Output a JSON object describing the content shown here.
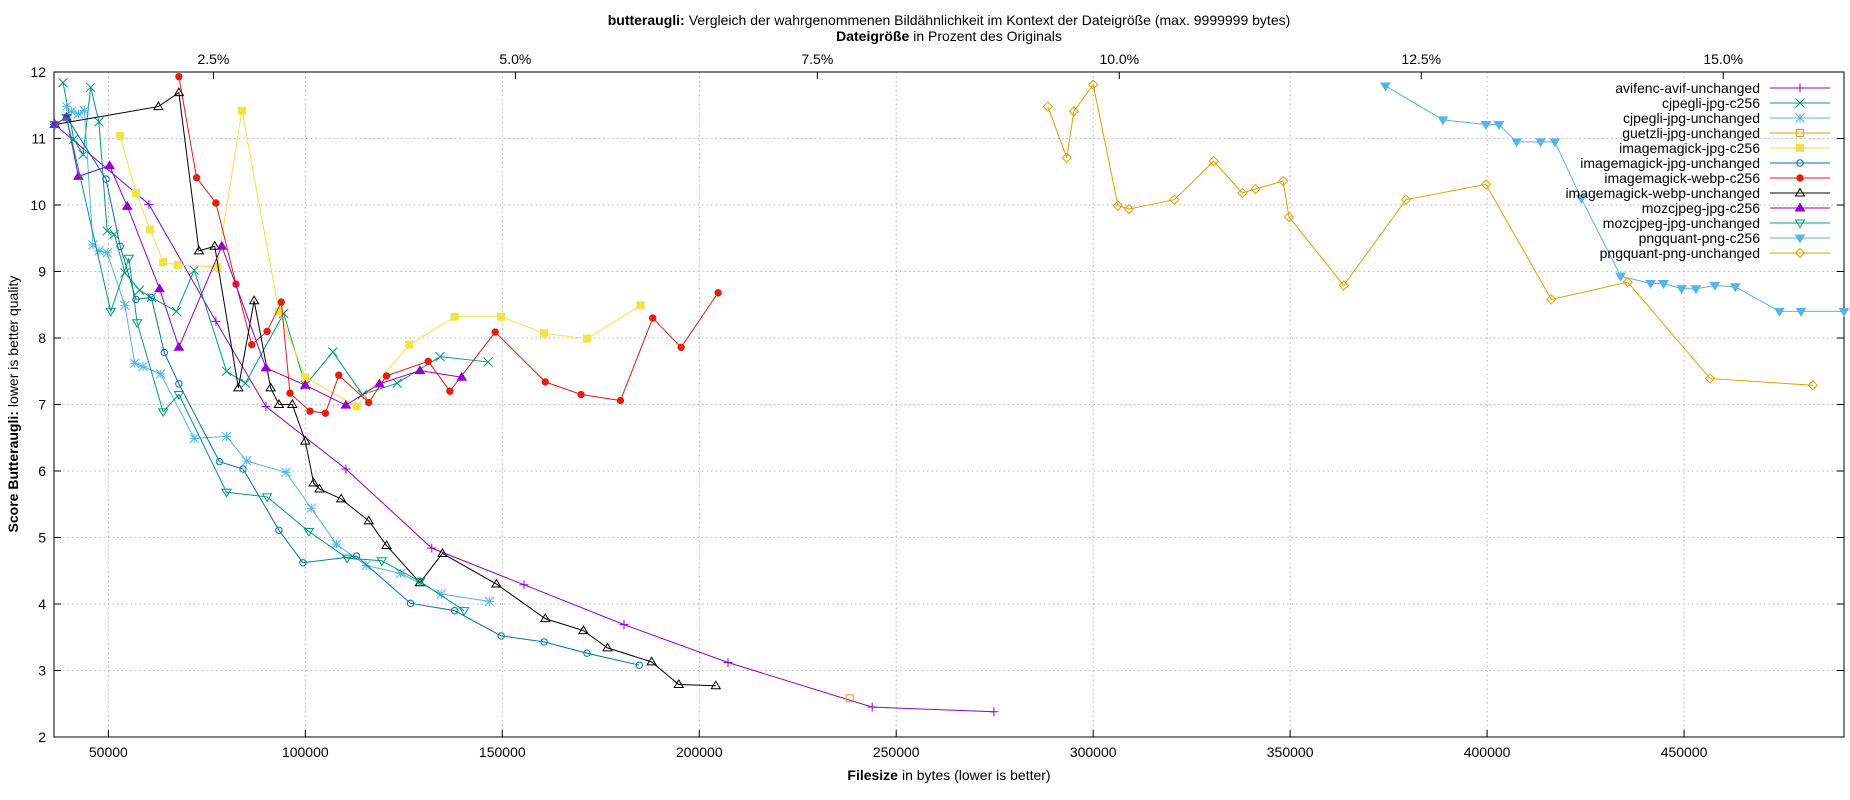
{
  "chart_data": {
    "type": "line",
    "title": {
      "bold": "butteraugli:",
      "text": "Vergleich der wahrgenommenen Bildähnlichkeit im Kontext der Dateigröße (max. 9999999 bytes)"
    },
    "subtitle": {
      "bold": "Dateigröße",
      "text": "in Prozent des Originals"
    },
    "x_label": {
      "bold": "Filesize",
      "text": "in bytes (lower is better)"
    },
    "y_label": {
      "bold": "Score Butteraugli:",
      "text": "lower is better quality"
    },
    "xlim": [
      36200,
      490600
    ],
    "xticks": [
      50000,
      100000,
      150000,
      200000,
      250000,
      300000,
      350000,
      400000,
      450000
    ],
    "x2lim": [
      1.18,
      16.0
    ],
    "x2ticks": [
      {
        "value": 2.5,
        "label": "2.5%"
      },
      {
        "value": 5,
        "label": "5.0%"
      },
      {
        "value": 7.5,
        "label": "7.5%"
      },
      {
        "value": 10,
        "label": "10.0%"
      },
      {
        "value": 12.5,
        "label": "12.5%"
      },
      {
        "value": 15,
        "label": "15.0%"
      }
    ],
    "ylim": [
      2,
      12
    ],
    "yticks": [
      2,
      3,
      4,
      5,
      6,
      7,
      8,
      9,
      10,
      11,
      12
    ],
    "grid": true,
    "legend_position": "top-right",
    "series": [
      {
        "name": "avifenc-avif-unchanged",
        "color": "#9400d3",
        "marker": "plus",
        "x": [
          36400,
          60300,
          77300,
          90000,
          110300,
          132100,
          155500,
          180900,
          207300,
          243900,
          274800
        ],
        "values": [
          11.21,
          10.01,
          8.25,
          6.97,
          6.03,
          4.84,
          4.29,
          3.69,
          3.12,
          2.45,
          2.38
        ]
      },
      {
        "name": "cjpegli-jpg-c256",
        "color": "#009e73",
        "marker": "cross",
        "x": [
          38500,
          41200,
          43600,
          45500,
          47600,
          49700,
          51500,
          54200,
          57900,
          60900,
          67300,
          71800,
          80000,
          84800,
          94500,
          100000,
          107000,
          114500,
          123300,
          134200,
          146400
        ],
        "values": [
          11.84,
          10.99,
          10.76,
          11.77,
          11.25,
          9.61,
          9.56,
          8.98,
          8.72,
          8.61,
          8.4,
          9.02,
          7.5,
          7.32,
          8.37,
          7.29,
          7.79,
          7.15,
          7.32,
          7.72,
          7.64
        ]
      },
      {
        "name": "cjpegli-jpg-unchanged",
        "color": "#56b4e9",
        "marker": "star",
        "x": [
          39400,
          40600,
          42400,
          43900,
          46100,
          47600,
          49700,
          54200,
          56700,
          58800,
          63300,
          71800,
          80000,
          85100,
          95100,
          101500,
          107900,
          115400,
          124200,
          134500,
          146700
        ],
        "values": [
          11.48,
          11.41,
          11.37,
          11.42,
          9.4,
          9.31,
          9.28,
          8.49,
          7.62,
          7.57,
          7.46,
          6.49,
          6.52,
          6.15,
          5.98,
          5.44,
          4.9,
          4.58,
          4.46,
          4.15,
          4.04
        ]
      },
      {
        "name": "guetzli-jpg-unchanged",
        "color": "#e69f00",
        "marker": "square-open",
        "x": [
          238200
        ],
        "values": [
          2.58
        ]
      },
      {
        "name": "imagemagick-jpg-c256",
        "color": "#f0e442",
        "marker": "square",
        "x": [
          53000,
          57000,
          60600,
          63900,
          67600,
          77600,
          83900,
          93300,
          100000,
          113000,
          126400,
          137900,
          149700,
          160600,
          171500,
          185100
        ],
        "values": [
          11.04,
          10.18,
          9.63,
          9.14,
          9.1,
          9.07,
          11.42,
          8.4,
          7.41,
          6.97,
          7.9,
          8.32,
          8.32,
          8.07,
          7.99,
          8.49
        ]
      },
      {
        "name": "imagemagick-jpg-unchanged",
        "color": "#0072b2",
        "marker": "circle-open",
        "x": [
          36400,
          39400,
          49400,
          53000,
          57000,
          60900,
          64200,
          67900,
          78200,
          84200,
          93300,
          99400,
          113000,
          126700,
          137900,
          149700,
          160600,
          171500,
          184800
        ],
        "values": [
          11.21,
          11.32,
          10.39,
          9.38,
          8.58,
          8.61,
          7.78,
          7.31,
          6.14,
          6.03,
          5.11,
          4.62,
          4.72,
          4.01,
          3.9,
          3.52,
          3.43,
          3.26,
          3.08
        ]
      },
      {
        "name": "imagemagick-webp-c256",
        "color": "#e51e10",
        "marker": "circle",
        "x": [
          67900,
          72400,
          77300,
          82400,
          86400,
          90300,
          93900,
          96100,
          101200,
          105100,
          108500,
          116100,
          120600,
          131200,
          136700,
          148200,
          160900,
          170000,
          180000,
          188200,
          195400,
          204800
        ],
        "values": [
          11.93,
          10.41,
          10.03,
          8.81,
          7.9,
          8.1,
          8.54,
          7.17,
          6.9,
          6.87,
          7.44,
          7.03,
          7.43,
          7.65,
          7.2,
          8.09,
          7.34,
          7.15,
          7.06,
          8.3,
          7.86,
          8.68
        ]
      },
      {
        "name": "imagemagick-webp-unchanged",
        "color": "#000000",
        "marker": "triangle-open",
        "x": [
          36400,
          62700,
          67900,
          73000,
          77000,
          83000,
          87000,
          91200,
          93300,
          96700,
          100000,
          102100,
          103600,
          109100,
          116100,
          120600,
          129100,
          134800,
          148500,
          160900,
          170600,
          176700,
          187900,
          194800,
          204200
        ],
        "values": [
          11.21,
          11.48,
          11.69,
          9.31,
          9.38,
          7.25,
          8.56,
          7.25,
          7.0,
          7.0,
          6.45,
          5.82,
          5.73,
          5.58,
          5.25,
          4.88,
          4.32,
          4.76,
          4.3,
          3.78,
          3.6,
          3.34,
          3.13,
          2.79,
          2.77
        ]
      },
      {
        "name": "mozcjpeg-jpg-c256",
        "color": "#9400d3",
        "marker": "triangle",
        "x": [
          36400,
          39400,
          42400,
          50300,
          54800,
          63000,
          67900,
          78800,
          90000,
          100000,
          110300,
          118800,
          129100,
          139700
        ],
        "values": [
          11.21,
          11.32,
          10.43,
          10.59,
          9.98,
          8.74,
          7.86,
          9.38,
          7.55,
          7.29,
          6.99,
          7.31,
          7.51,
          7.41
        ]
      },
      {
        "name": "mozcjpeg-jpg-unchanged",
        "color": "#009e73",
        "marker": "triangle-down-open",
        "x": [
          36400,
          39400,
          50600,
          55200,
          57300,
          63900,
          67900,
          80000,
          90300,
          100900,
          110600,
          119400,
          129100,
          140300
        ],
        "values": [
          11.21,
          11.32,
          8.4,
          9.2,
          8.23,
          6.89,
          7.15,
          5.68,
          5.61,
          5.09,
          4.69,
          4.65,
          4.34,
          3.9
        ]
      },
      {
        "name": "pngquant-png-c256",
        "color": "#56b4e9",
        "marker": "triangle-down",
        "x": [
          374200,
          388800,
          399700,
          403000,
          407500,
          413600,
          417200,
          423900,
          433900,
          441500,
          444800,
          449400,
          453000,
          457800,
          463000,
          474200,
          479700,
          490600
        ],
        "values": [
          11.79,
          11.28,
          11.21,
          11.21,
          10.95,
          10.95,
          10.95,
          10.1,
          8.93,
          8.82,
          8.82,
          8.74,
          8.74,
          8.79,
          8.77,
          8.4,
          8.4,
          8.4
        ]
      },
      {
        "name": "pngquant-png-unchanged",
        "color": "#e69f00",
        "marker": "diamond-open",
        "x": [
          288500,
          293300,
          295100,
          300000,
          306300,
          309100,
          320600,
          330600,
          337900,
          341200,
          348200,
          349700,
          363600,
          379400,
          399700,
          416300,
          435700,
          456600,
          482700
        ],
        "values": [
          11.48,
          10.71,
          11.41,
          11.81,
          9.99,
          9.94,
          10.08,
          10.66,
          10.18,
          10.24,
          10.36,
          9.82,
          8.79,
          10.08,
          10.31,
          8.58,
          8.84,
          7.39,
          7.29
        ]
      }
    ]
  }
}
